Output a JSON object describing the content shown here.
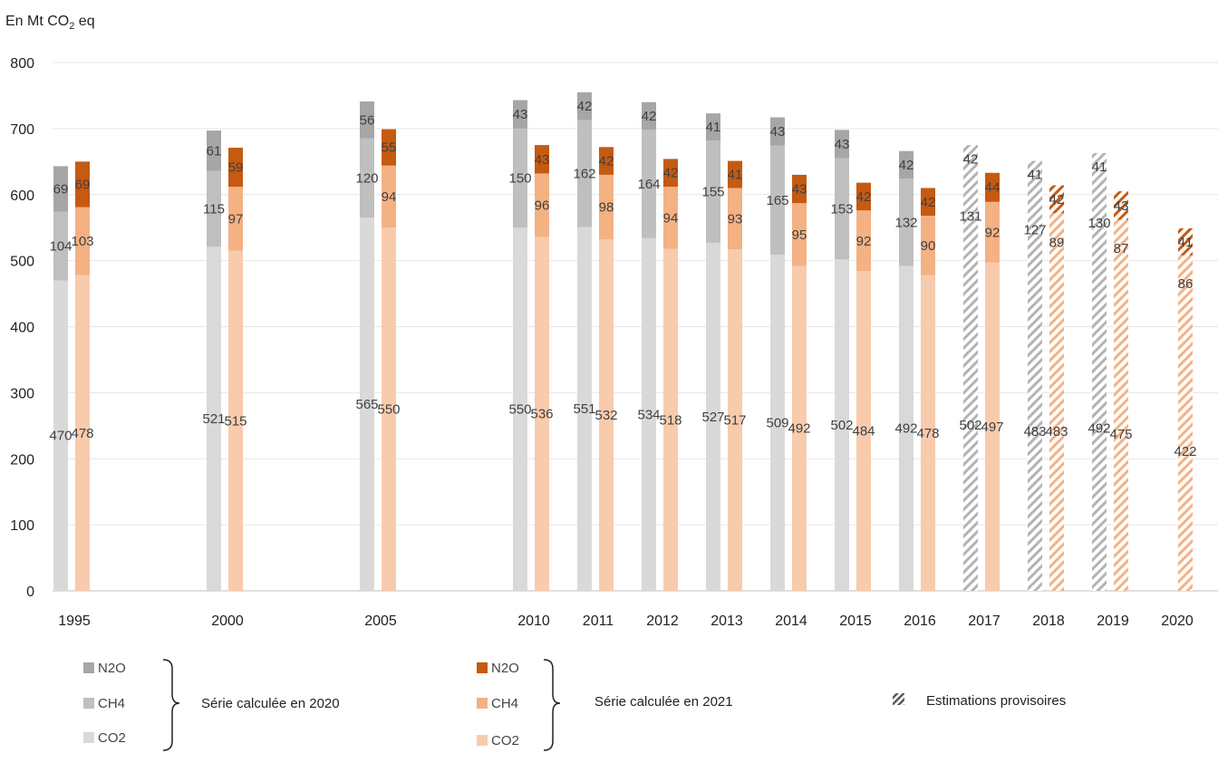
{
  "chart_data": {
    "type": "bar",
    "stacked": true,
    "grouped": true,
    "unit_label": {
      "prefix": "En Mt CO",
      "subscript": "2",
      "suffix": " eq"
    },
    "ylim": [
      0,
      800
    ],
    "yticks": [
      0,
      100,
      200,
      300,
      400,
      500,
      600,
      700,
      800
    ],
    "grid": true,
    "categories": [
      "1995",
      "2000",
      "2005",
      "2010",
      "2011",
      "2012",
      "2013",
      "2014",
      "2015",
      "2016",
      "2017",
      "2018",
      "2019",
      "2020"
    ],
    "groups": [
      {
        "name": "Série calculée en 2020",
        "colors": {
          "CO2": "#d9d9d9",
          "CH4": "#bfbfbf",
          "N2O": "#a6a6a6"
        },
        "series": [
          {
            "name": "CO2",
            "values": [
              470,
              521,
              565,
              550,
              551,
              534,
              527,
              509,
              502,
              492,
              502,
              483,
              492,
              null
            ]
          },
          {
            "name": "CH4",
            "values": [
              104,
              115,
              120,
              150,
              162,
              164,
              155,
              165,
              153,
              132,
              131,
              127,
              130,
              null
            ]
          },
          {
            "name": "N2O",
            "values": [
              69,
              61,
              56,
              43,
              42,
              42,
              41,
              43,
              43,
              42,
              42,
              41,
              41,
              null
            ]
          }
        ],
        "provisional": [
          false,
          false,
          false,
          false,
          false,
          false,
          false,
          false,
          false,
          false,
          true,
          true,
          true,
          false
        ]
      },
      {
        "name": "Série calculée en 2021",
        "colors": {
          "CO2": "#f8cbad",
          "CH4": "#f4b183",
          "N2O": "#c55a11"
        },
        "series": [
          {
            "name": "CO2",
            "values": [
              478,
              515,
              550,
              536,
              532,
              518,
              517,
              492,
              484,
              478,
              497,
              483,
              475,
              422
            ]
          },
          {
            "name": "CH4",
            "values": [
              103,
              97,
              94,
              96,
              98,
              94,
              93,
              95,
              92,
              90,
              92,
              89,
              87,
              86
            ]
          },
          {
            "name": "N2O",
            "values": [
              69,
              59,
              55,
              43,
              42,
              42,
              41,
              43,
              42,
              42,
              44,
              42,
              43,
              41
            ]
          }
        ],
        "provisional": [
          false,
          false,
          false,
          false,
          false,
          false,
          false,
          false,
          false,
          false,
          false,
          true,
          true,
          true
        ]
      }
    ],
    "legend": {
      "groups": [
        {
          "label": "Série calculée en 2020",
          "items": [
            "N2O",
            "CH4",
            "CO2"
          ]
        },
        {
          "label": "Série calculée en 2021",
          "items": [
            "N2O",
            "CH4",
            "CO2"
          ]
        }
      ],
      "provisional_label": "Estimations provisoires",
      "placement": "bottom"
    }
  }
}
